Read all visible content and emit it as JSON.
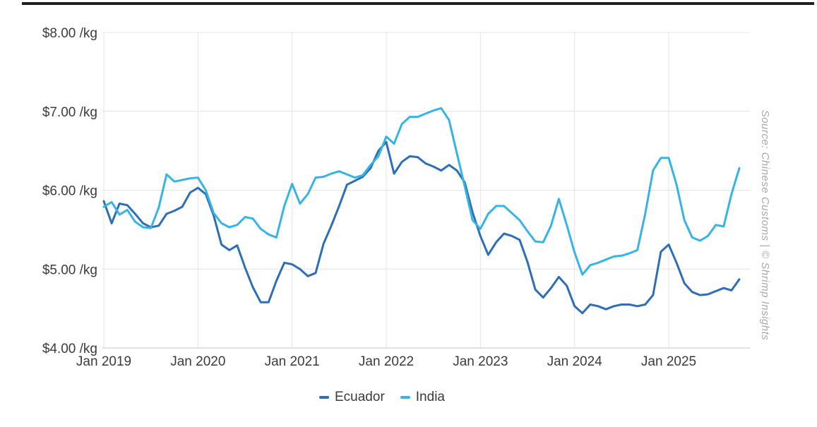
{
  "page": {
    "source_credit": "Source: Chinese Customs | © Shrimp Insights"
  },
  "chart_data": {
    "type": "line",
    "title": "",
    "xlabel": "",
    "ylabel": "",
    "unit": "USD per kg",
    "x_start": "Jan 2019",
    "x_end": "Oct 2025",
    "x_interval": "monthly",
    "ylim": [
      4,
      8
    ],
    "grid": true,
    "legend_position": "bottom",
    "y_tick_labels": [
      "$8.00 /kg",
      "$7.00 /kg",
      "$6.00 /kg",
      "$5.00 /kg",
      "$4.00 /kg"
    ],
    "y_tick_values": [
      8,
      7,
      6,
      5,
      4
    ],
    "x_tick_labels": [
      "Jan 2019",
      "Jan 2020",
      "Jan 2021",
      "Jan 2022",
      "Jan 2023",
      "Jan 2024",
      "Jan 2025"
    ],
    "series": [
      {
        "name": "Ecuador",
        "color": "#2d6eb5",
        "values": [
          5.86,
          5.58,
          5.83,
          5.81,
          5.7,
          5.58,
          5.53,
          5.55,
          5.7,
          5.74,
          5.79,
          5.97,
          6.03,
          5.95,
          5.68,
          5.31,
          5.24,
          5.3,
          5.02,
          4.77,
          4.58,
          4.58,
          4.85,
          5.08,
          5.06,
          5.0,
          4.91,
          4.95,
          5.32,
          5.55,
          5.8,
          6.07,
          6.12,
          6.17,
          6.28,
          6.5,
          6.61,
          6.21,
          6.36,
          6.43,
          6.42,
          6.34,
          6.3,
          6.25,
          6.32,
          6.25,
          6.1,
          5.72,
          5.42,
          5.18,
          5.34,
          5.45,
          5.42,
          5.37,
          5.09,
          4.74,
          4.64,
          4.76,
          4.9,
          4.79,
          4.53,
          4.44,
          4.55,
          4.53,
          4.49,
          4.53,
          4.55,
          4.55,
          4.53,
          4.55,
          4.67,
          5.22,
          5.31,
          5.08,
          4.82,
          4.71,
          4.67,
          4.68,
          4.72,
          4.76,
          4.73,
          4.87
        ]
      },
      {
        "name": "India",
        "color": "#36b4e6",
        "values": [
          5.79,
          5.85,
          5.69,
          5.75,
          5.6,
          5.53,
          5.52,
          5.78,
          6.2,
          6.11,
          6.13,
          6.15,
          6.16,
          6.0,
          5.71,
          5.58,
          5.53,
          5.56,
          5.66,
          5.64,
          5.51,
          5.44,
          5.4,
          5.8,
          6.08,
          5.83,
          5.95,
          6.16,
          6.17,
          6.21,
          6.24,
          6.2,
          6.16,
          6.19,
          6.32,
          6.43,
          6.68,
          6.59,
          6.84,
          6.93,
          6.93,
          6.97,
          7.01,
          7.04,
          6.89,
          6.47,
          6.05,
          5.62,
          5.51,
          5.7,
          5.8,
          5.8,
          5.71,
          5.62,
          5.48,
          5.35,
          5.34,
          5.55,
          5.89,
          5.56,
          5.21,
          4.93,
          5.05,
          5.08,
          5.12,
          5.16,
          5.17,
          5.2,
          5.24,
          5.7,
          6.25,
          6.41,
          6.41,
          6.07,
          5.62,
          5.4,
          5.36,
          5.42,
          5.56,
          5.54,
          5.95,
          6.28
        ]
      }
    ]
  }
}
